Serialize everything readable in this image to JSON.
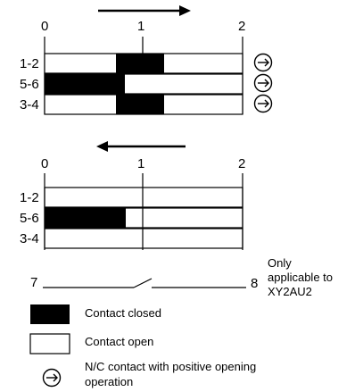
{
  "top_diagram": {
    "scale_labels": [
      "0",
      "1",
      "2"
    ],
    "rows": [
      {
        "label": "1-2",
        "closed": [
          [
            0.75,
            1.25
          ]
        ],
        "positive_opening": true
      },
      {
        "label": "5-6",
        "closed": [
          [
            0.0,
            0.82
          ]
        ],
        "positive_opening": true
      },
      {
        "label": "3-4",
        "closed": [
          [
            0.75,
            1.25
          ]
        ],
        "positive_opening": true
      }
    ]
  },
  "bottom_diagram": {
    "scale_labels": [
      "0",
      "1",
      "2"
    ],
    "rows": [
      {
        "label": "1-2",
        "closed": []
      },
      {
        "label": "5-6",
        "closed": [
          [
            0.0,
            0.83
          ]
        ]
      },
      {
        "label": "3-4",
        "closed": []
      }
    ]
  },
  "switch_line": {
    "left_label": "7",
    "right_label": "8",
    "note": [
      "Only",
      "applicable to",
      "XY2AU2"
    ]
  },
  "legend": {
    "closed_label": "Contact closed",
    "open_label": "Contact open",
    "positive_label_lines": [
      "N/C contact with positive opening",
      "operation"
    ]
  },
  "colors": {
    "ink": "#000000",
    "paper": "#ffffff"
  }
}
